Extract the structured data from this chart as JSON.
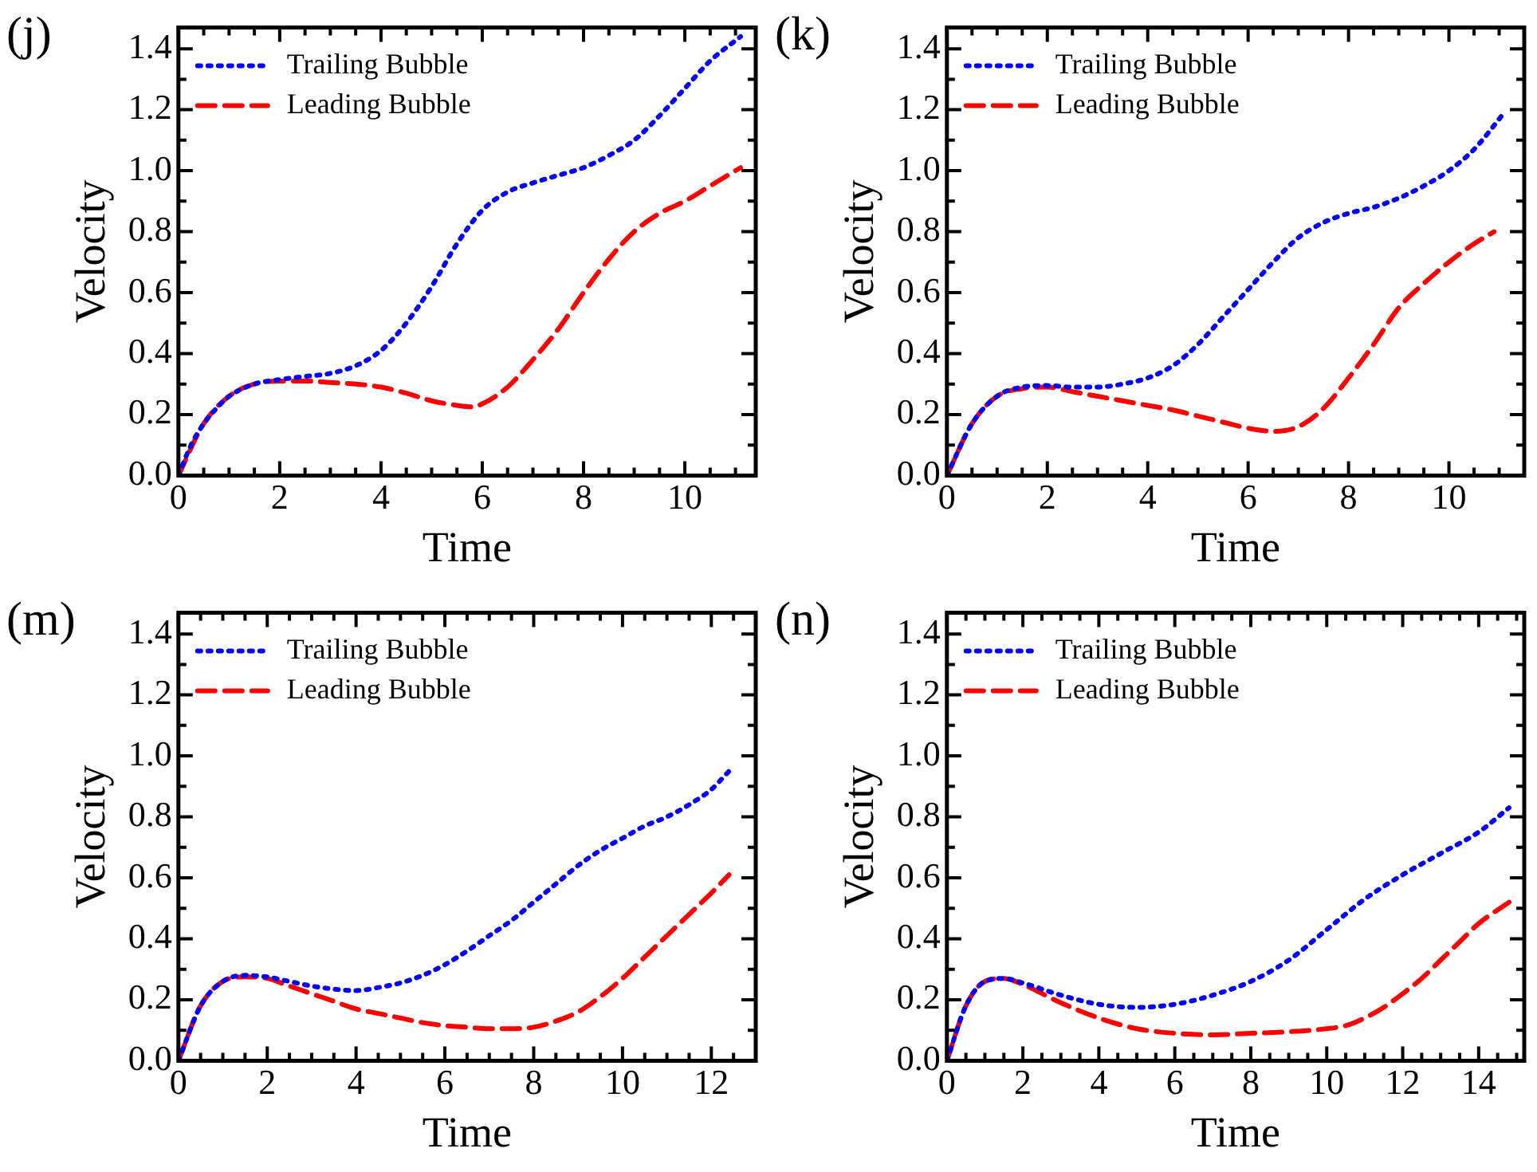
{
  "chart_data": [
    {
      "type": "line",
      "title": "(j)",
      "xlabel": "Time",
      "ylabel": "Velocity",
      "legend": "top left",
      "marker": "none",
      "xlim": [
        0,
        11.4
      ],
      "ylim": [
        0,
        1.47
      ],
      "xticks": [
        0,
        {
          "value": 0.5,
          "label": null
        },
        2,
        {
          "value": 1,
          "label": null
        },
        {
          "value": 1.5,
          "label": null
        },
        {
          "value": 2.5,
          "label": null
        },
        {
          "value": 3,
          "label": null
        },
        {
          "value": 3.5,
          "label": null
        },
        4,
        {
          "value": 4.5,
          "label": null
        },
        {
          "value": 5,
          "label": null
        },
        {
          "value": 5.5,
          "label": null
        },
        6,
        {
          "value": 6.5,
          "label": null
        },
        {
          "value": 7,
          "label": null
        },
        {
          "value": 7.5,
          "label": null
        },
        8,
        {
          "value": 8.5,
          "label": null
        },
        {
          "value": 9,
          "label": null
        },
        {
          "value": 9.5,
          "label": null
        },
        10,
        {
          "value": 10.5,
          "label": null
        },
        {
          "value": 11,
          "label": null
        }
      ],
      "yticks": [
        {
          "value": 0,
          "label": "0.0"
        },
        {
          "value": 0.1,
          "label": null
        },
        {
          "value": 0.2,
          "label": "0.2"
        },
        {
          "value": 0.3,
          "label": null
        },
        {
          "value": 0.4,
          "label": "0.4"
        },
        {
          "value": 0.5,
          "label": null
        },
        {
          "value": 0.6,
          "label": "0.6"
        },
        {
          "value": 0.7,
          "label": null
        },
        {
          "value": 0.8,
          "label": "0.8"
        },
        {
          "value": 0.9,
          "label": null
        },
        {
          "value": 1,
          "label": "1.0"
        },
        {
          "value": 1.1,
          "label": null
        },
        {
          "value": 1.2,
          "label": "1.2"
        },
        {
          "value": 1.3,
          "label": null
        },
        {
          "value": 1.4,
          "label": "1.4"
        }
      ],
      "series": [
        {
          "name": "Trailing Bubble",
          "color": "#0000ff",
          "line_style": "dotted",
          "x": [
            0,
            0.25,
            0.5,
            0.75,
            1,
            1.5,
            2,
            2.5,
            3,
            3.5,
            4,
            4.5,
            5,
            5.5,
            6,
            6.5,
            7,
            7.5,
            8,
            8.5,
            9,
            9.5,
            10,
            10.5,
            11.1
          ],
          "values": [
            0,
            0.1,
            0.17,
            0.22,
            0.26,
            0.3,
            0.315,
            0.325,
            0.335,
            0.36,
            0.41,
            0.5,
            0.62,
            0.76,
            0.87,
            0.93,
            0.96,
            0.985,
            1.01,
            1.05,
            1.1,
            1.18,
            1.27,
            1.36,
            1.44
          ]
        },
        {
          "name": "Leading Bubble",
          "color": "#ff0000",
          "line_style": "dashed",
          "x": [
            0,
            0.5,
            1,
            1.5,
            2,
            2.5,
            3,
            3.5,
            4,
            4.5,
            5,
            5.5,
            5.8,
            6,
            6.5,
            7,
            7.5,
            8,
            8.5,
            9,
            9.5,
            10,
            10.5,
            11.1
          ],
          "values": [
            0,
            0.17,
            0.26,
            0.3,
            0.31,
            0.31,
            0.305,
            0.3,
            0.29,
            0.27,
            0.245,
            0.23,
            0.225,
            0.235,
            0.29,
            0.38,
            0.48,
            0.6,
            0.71,
            0.8,
            0.86,
            0.9,
            0.95,
            1.01
          ]
        }
      ]
    },
    {
      "type": "line",
      "title": "(k)",
      "xlabel": "Time",
      "ylabel": "Velocity",
      "legend": "top left",
      "marker": "none",
      "xlim": [
        0,
        11.5
      ],
      "ylim": [
        0,
        1.47
      ],
      "xticks": [
        0,
        {
          "value": 0.5,
          "label": null
        },
        2,
        {
          "value": 1,
          "label": null
        },
        {
          "value": 1.5,
          "label": null
        },
        {
          "value": 2.5,
          "label": null
        },
        {
          "value": 3,
          "label": null
        },
        {
          "value": 3.5,
          "label": null
        },
        4,
        {
          "value": 4.5,
          "label": null
        },
        {
          "value": 5,
          "label": null
        },
        {
          "value": 5.5,
          "label": null
        },
        6,
        {
          "value": 6.5,
          "label": null
        },
        {
          "value": 7,
          "label": null
        },
        {
          "value": 7.5,
          "label": null
        },
        8,
        {
          "value": 8.5,
          "label": null
        },
        {
          "value": 9,
          "label": null
        },
        {
          "value": 9.5,
          "label": null
        },
        10,
        {
          "value": 10.5,
          "label": null
        },
        {
          "value": 11,
          "label": null
        }
      ],
      "yticks": [
        {
          "value": 0,
          "label": "0.0"
        },
        {
          "value": 0.1,
          "label": null
        },
        {
          "value": 0.2,
          "label": "0.2"
        },
        {
          "value": 0.3,
          "label": null
        },
        {
          "value": 0.4,
          "label": "0.4"
        },
        {
          "value": 0.5,
          "label": null
        },
        {
          "value": 0.6,
          "label": "0.6"
        },
        {
          "value": 0.7,
          "label": null
        },
        {
          "value": 0.8,
          "label": "0.8"
        },
        {
          "value": 0.9,
          "label": null
        },
        {
          "value": 1,
          "label": "1.0"
        },
        {
          "value": 1.1,
          "label": null
        },
        {
          "value": 1.2,
          "label": "1.2"
        },
        {
          "value": 1.3,
          "label": null
        },
        {
          "value": 1.4,
          "label": "1.4"
        }
      ],
      "series": [
        {
          "name": "Trailing Bubble",
          "color": "#0000ff",
          "line_style": "dotted",
          "x": [
            0,
            0.5,
            1,
            1.5,
            2,
            2.5,
            3,
            3.5,
            4,
            4.5,
            5,
            5.5,
            6,
            6.5,
            7,
            7.5,
            8,
            8.5,
            9,
            9.5,
            10,
            10.5,
            11.1
          ],
          "values": [
            0,
            0.17,
            0.26,
            0.29,
            0.295,
            0.29,
            0.29,
            0.3,
            0.32,
            0.36,
            0.43,
            0.52,
            0.61,
            0.7,
            0.78,
            0.83,
            0.86,
            0.88,
            0.91,
            0.95,
            1.0,
            1.07,
            1.19
          ]
        },
        {
          "name": "Leading Bubble",
          "color": "#ff0000",
          "line_style": "dashed",
          "x": [
            0,
            0.5,
            1,
            1.5,
            2,
            2.5,
            3,
            3.5,
            4,
            4.5,
            5,
            5.5,
            6,
            6.5,
            7,
            7.5,
            8,
            8.5,
            9,
            9.5,
            10,
            10.5,
            10.9
          ],
          "values": [
            0,
            0.17,
            0.26,
            0.285,
            0.29,
            0.275,
            0.26,
            0.245,
            0.23,
            0.215,
            0.195,
            0.175,
            0.155,
            0.145,
            0.16,
            0.22,
            0.32,
            0.43,
            0.55,
            0.63,
            0.7,
            0.76,
            0.8
          ]
        }
      ]
    },
    {
      "type": "line",
      "title": "(m)",
      "xlabel": "Time",
      "ylabel": "Velocity",
      "legend": "top left",
      "marker": "none",
      "xlim": [
        0,
        13
      ],
      "ylim": [
        0,
        1.47
      ],
      "xticks": [
        0,
        {
          "value": 0.5,
          "label": null
        },
        2,
        {
          "value": 1,
          "label": null
        },
        {
          "value": 1.5,
          "label": null
        },
        {
          "value": 2.5,
          "label": null
        },
        {
          "value": 3,
          "label": null
        },
        {
          "value": 3.5,
          "label": null
        },
        4,
        {
          "value": 4.5,
          "label": null
        },
        {
          "value": 5,
          "label": null
        },
        {
          "value": 5.5,
          "label": null
        },
        6,
        {
          "value": 6.5,
          "label": null
        },
        {
          "value": 7,
          "label": null
        },
        {
          "value": 7.5,
          "label": null
        },
        8,
        {
          "value": 8.5,
          "label": null
        },
        {
          "value": 9,
          "label": null
        },
        {
          "value": 9.5,
          "label": null
        },
        10,
        {
          "value": 10.5,
          "label": null
        },
        {
          "value": 11,
          "label": null
        },
        {
          "value": 11.5,
          "label": null
        },
        12,
        {
          "value": 12.5,
          "label": null
        }
      ],
      "yticks": [
        {
          "value": 0,
          "label": "0.0"
        },
        {
          "value": 0.1,
          "label": null
        },
        {
          "value": 0.2,
          "label": "0.2"
        },
        {
          "value": 0.3,
          "label": null
        },
        {
          "value": 0.4,
          "label": "0.4"
        },
        {
          "value": 0.5,
          "label": null
        },
        {
          "value": 0.6,
          "label": "0.6"
        },
        {
          "value": 0.7,
          "label": null
        },
        {
          "value": 0.8,
          "label": "0.8"
        },
        {
          "value": 0.9,
          "label": null
        },
        {
          "value": 1,
          "label": "1.0"
        },
        {
          "value": 1.1,
          "label": null
        },
        {
          "value": 1.2,
          "label": "1.2"
        },
        {
          "value": 1.3,
          "label": null
        },
        {
          "value": 1.4,
          "label": "1.4"
        }
      ],
      "series": [
        {
          "name": "Trailing Bubble",
          "color": "#0000ff",
          "line_style": "dotted",
          "x": [
            0,
            0.5,
            1,
            1.5,
            2,
            2.5,
            3,
            3.5,
            4,
            4.5,
            5,
            5.5,
            6,
            6.5,
            7,
            7.5,
            8,
            8.5,
            9,
            9.5,
            10,
            10.5,
            11,
            11.5,
            12,
            12.4
          ],
          "values": [
            0,
            0.18,
            0.26,
            0.28,
            0.275,
            0.26,
            0.245,
            0.235,
            0.23,
            0.24,
            0.255,
            0.28,
            0.315,
            0.36,
            0.41,
            0.46,
            0.52,
            0.58,
            0.64,
            0.69,
            0.73,
            0.77,
            0.8,
            0.84,
            0.89,
            0.95
          ]
        },
        {
          "name": "Leading Bubble",
          "color": "#ff0000",
          "line_style": "dashed",
          "x": [
            0,
            0.5,
            1,
            1.5,
            2,
            2.5,
            3,
            3.5,
            4,
            4.5,
            5,
            5.5,
            6,
            6.5,
            7,
            7.5,
            8,
            8.5,
            9,
            9.5,
            10,
            10.5,
            11,
            11.5,
            12,
            12.4
          ],
          "values": [
            0,
            0.18,
            0.26,
            0.275,
            0.27,
            0.245,
            0.22,
            0.195,
            0.17,
            0.155,
            0.14,
            0.125,
            0.115,
            0.11,
            0.105,
            0.105,
            0.11,
            0.13,
            0.16,
            0.21,
            0.27,
            0.34,
            0.41,
            0.48,
            0.55,
            0.61
          ]
        }
      ]
    },
    {
      "type": "line",
      "title": "(n)",
      "xlabel": "Time",
      "ylabel": "Velocity",
      "legend": "top left",
      "marker": "none",
      "xlim": [
        0,
        15.2
      ],
      "ylim": [
        0,
        1.47
      ],
      "xticks": [
        0,
        {
          "value": 0.5,
          "label": null
        },
        2,
        {
          "value": 1,
          "label": null
        },
        {
          "value": 1.5,
          "label": null
        },
        {
          "value": 2.5,
          "label": null
        },
        {
          "value": 3,
          "label": null
        },
        {
          "value": 3.5,
          "label": null
        },
        4,
        {
          "value": 4.5,
          "label": null
        },
        {
          "value": 5,
          "label": null
        },
        {
          "value": 5.5,
          "label": null
        },
        6,
        {
          "value": 6.5,
          "label": null
        },
        {
          "value": 7,
          "label": null
        },
        {
          "value": 7.5,
          "label": null
        },
        8,
        {
          "value": 8.5,
          "label": null
        },
        {
          "value": 9,
          "label": null
        },
        {
          "value": 9.5,
          "label": null
        },
        10,
        {
          "value": 10.5,
          "label": null
        },
        {
          "value": 11,
          "label": null
        },
        {
          "value": 11.5,
          "label": null
        },
        12,
        {
          "value": 12.5,
          "label": null
        },
        {
          "value": 13,
          "label": null
        },
        {
          "value": 13.5,
          "label": null
        },
        14,
        {
          "value": 14.5,
          "label": null
        },
        {
          "value": 15,
          "label": null
        }
      ],
      "yticks": [
        {
          "value": 0,
          "label": "0.0"
        },
        {
          "value": 0.1,
          "label": null
        },
        {
          "value": 0.2,
          "label": "0.2"
        },
        {
          "value": 0.3,
          "label": null
        },
        {
          "value": 0.4,
          "label": "0.4"
        },
        {
          "value": 0.5,
          "label": null
        },
        {
          "value": 0.6,
          "label": "0.6"
        },
        {
          "value": 0.7,
          "label": null
        },
        {
          "value": 0.8,
          "label": "0.8"
        },
        {
          "value": 0.9,
          "label": null
        },
        {
          "value": 1,
          "label": "1.0"
        },
        {
          "value": 1.1,
          "label": null
        },
        {
          "value": 1.2,
          "label": "1.2"
        },
        {
          "value": 1.3,
          "label": null
        },
        {
          "value": 1.4,
          "label": "1.4"
        }
      ],
      "series": [
        {
          "name": "Trailing Bubble",
          "color": "#0000ff",
          "line_style": "dotted",
          "x": [
            0,
            0.5,
            1,
            1.5,
            2,
            3,
            4,
            5,
            6,
            7,
            8,
            9,
            10,
            11,
            12,
            13,
            14,
            14.8
          ],
          "values": [
            0,
            0.18,
            0.26,
            0.27,
            0.255,
            0.215,
            0.185,
            0.175,
            0.185,
            0.215,
            0.26,
            0.33,
            0.43,
            0.53,
            0.61,
            0.68,
            0.75,
            0.83
          ]
        },
        {
          "name": "Leading Bubble",
          "color": "#ff0000",
          "line_style": "dashed",
          "x": [
            0,
            0.5,
            1,
            1.5,
            2,
            3,
            4,
            5,
            6,
            7,
            8,
            9,
            10,
            10.5,
            11,
            11.5,
            12,
            12.5,
            13,
            13.5,
            14,
            14.8
          ],
          "values": [
            0,
            0.18,
            0.26,
            0.27,
            0.25,
            0.19,
            0.14,
            0.105,
            0.09,
            0.085,
            0.09,
            0.095,
            0.105,
            0.115,
            0.14,
            0.175,
            0.22,
            0.27,
            0.33,
            0.39,
            0.45,
            0.52
          ]
        }
      ]
    }
  ]
}
